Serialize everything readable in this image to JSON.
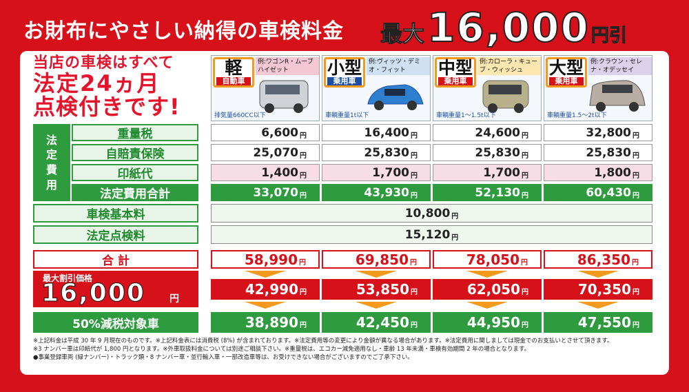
{
  "header": {
    "title": "お財布にやさしい納得の車検料金",
    "discount_prefix": "最大",
    "discount_amount": "16,000",
    "discount_suffix": "円引"
  },
  "intro": {
    "line1": "当店の車検はすべて",
    "line2": "法定24ヵ月",
    "line3": "点検付きです!"
  },
  "cars": [
    {
      "type": "軽",
      "category": "自動車",
      "example": "例:ワゴンR・ムーブ ハイゼット",
      "weight": "排気量660CC以下"
    },
    {
      "type": "小型",
      "category": "乗用車",
      "example": "例:ヴィッツ・デミオ・フィット",
      "weight": "車輌重量1t以下"
    },
    {
      "type": "中型",
      "category": "乗用車",
      "example": "例:カローラ・キューブ・ウィッシュ",
      "weight": "車輌重量1〜1.5t以下"
    },
    {
      "type": "大型",
      "category": "乗用車",
      "example": "例:クラウン・セレナ・オデッセイ",
      "weight": "車輌重量1.5〜2t以下"
    }
  ],
  "houtei_label": "法\n定\n費\n用",
  "rows": {
    "weight_tax": {
      "label": "重量税",
      "values": [
        "6,600",
        "16,400",
        "24,600",
        "32,800"
      ]
    },
    "insurance": {
      "label": "自賠責保険",
      "values": [
        "25,070",
        "25,830",
        "25,830",
        "25,830"
      ]
    },
    "stamp": {
      "label": "印紙代",
      "values": [
        "1,400",
        "1,700",
        "1,700",
        "1,800"
      ]
    },
    "legal_total": {
      "label": "法定費用合計",
      "values": [
        "33,070",
        "43,930",
        "52,130",
        "60,430"
      ]
    },
    "basic_fee": {
      "label": "車検基本料",
      "value": "10,800"
    },
    "inspection_fee": {
      "label": "法定点検料",
      "value": "15,120"
    },
    "total": {
      "label": "合 計",
      "values": [
        "58,990",
        "69,850",
        "78,050",
        "86,350"
      ]
    },
    "discounted": {
      "values": [
        "42,990",
        "53,850",
        "62,050",
        "70,350"
      ]
    },
    "half_tax": {
      "label": "50%減税対象車",
      "values": [
        "38,890",
        "42,450",
        "44,950",
        "47,550"
      ]
    }
  },
  "discount_box": {
    "title": "最大割引価格",
    "amount": "16,000",
    "unit": "円"
  },
  "yen": "円",
  "notes": [
    "※上記料金は平成 30 年 9 月現在のものです。※上記料金表には消費税 (8%) が含まれております。※法定費用等の変更により金額が異なる場合があります。※法定費用に関しましては現金でのお支払いとさせて頂きます。",
    "※3 ナンバー車は印紙代が 1,800 円となります。※外車取扱料金については別途ご相談下さい。※重量税は、エコカー減免適用なし・車齢 13 年未満・車検有効期間 2 年の場合となります。",
    "●事業登録車両 (緑ナンバー)・トラック類・8 ナンバー車・並行輸入車・一部改造車等は、お受けできない場合がございますのでご了承下さい。"
  ]
}
